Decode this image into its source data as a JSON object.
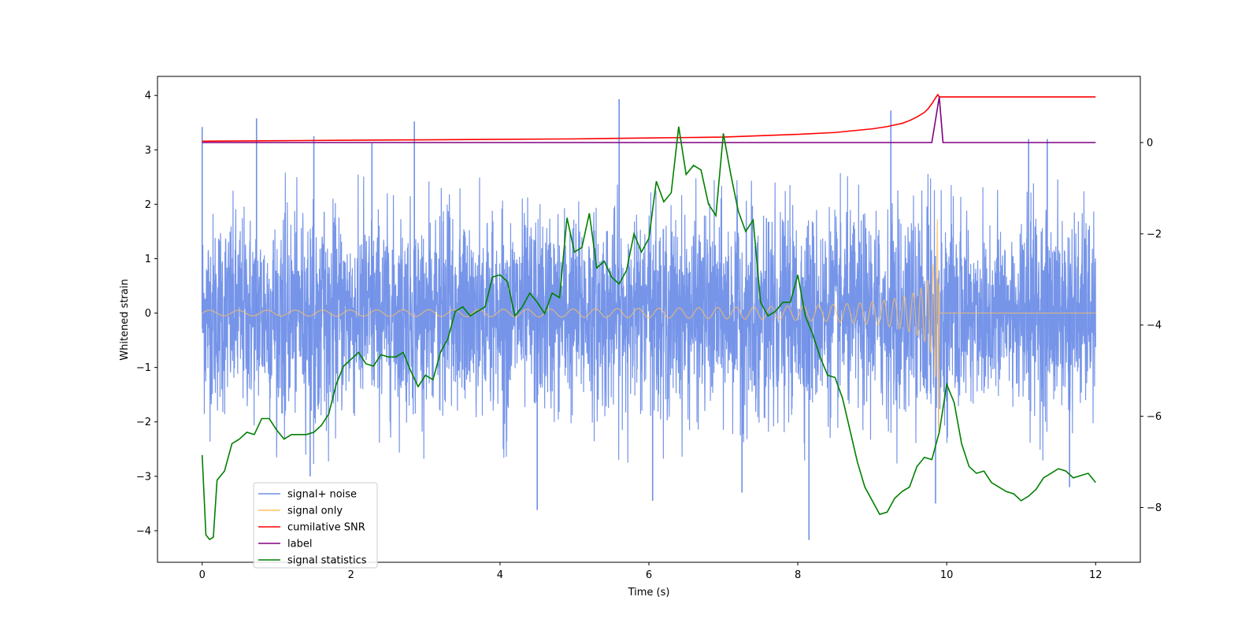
{
  "chart_data": {
    "type": "line",
    "title": "",
    "xlabel": "Time (s)",
    "ylabel": "Whitened strain",
    "y2label": "",
    "xlim": [
      -0.6,
      12.6
    ],
    "ylim": [
      -4.58,
      4.35
    ],
    "y2lim": [
      -9.2,
      1.45
    ],
    "xticks": [
      0,
      2,
      4,
      6,
      8,
      10,
      12
    ],
    "yticks": [
      -4,
      -3,
      -2,
      -1,
      0,
      1,
      2,
      3,
      4
    ],
    "y2ticks": [
      -8,
      -6,
      -4,
      -2,
      0
    ],
    "tick_labels": {
      "x": [
        "0",
        "2",
        "4",
        "6",
        "8",
        "10",
        "12"
      ],
      "y": [
        "−4",
        "−3",
        "−2",
        "−1",
        "0",
        "1",
        "2",
        "3",
        "4"
      ],
      "y2": [
        "−8",
        "−6",
        "−4",
        "−2",
        "0"
      ]
    },
    "grid": false,
    "legend_position": "lower-left",
    "noise": {
      "description": "Dense whitened noise, approximately +/-1.5 with occasional spikes",
      "spikes": [
        {
          "t": 0.0,
          "v": 3.42
        },
        {
          "t": 0.73,
          "v": 3.58
        },
        {
          "t": 1.5,
          "v": 3.25
        },
        {
          "t": 2.28,
          "v": 3.12
        },
        {
          "t": 2.85,
          "v": 3.52
        },
        {
          "t": 5.6,
          "v": 3.93
        },
        {
          "t": 9.25,
          "v": 3.72
        },
        {
          "t": 11.1,
          "v": 3.2
        },
        {
          "t": 11.35,
          "v": 3.2
        },
        {
          "t": 1.45,
          "v": -3.0
        },
        {
          "t": 4.5,
          "v": -3.62
        },
        {
          "t": 6.05,
          "v": -3.45
        },
        {
          "t": 7.25,
          "v": -3.3
        },
        {
          "t": 8.15,
          "v": -4.17
        },
        {
          "t": 9.85,
          "v": -3.5
        },
        {
          "t": 11.65,
          "v": -3.2
        }
      ]
    },
    "chirp": {
      "merger_time": 9.9,
      "peak_amplitude": 2.2,
      "description": "Signal only: inspiral chirp growing toward merger near t=9.9 s, zero afterwards"
    },
    "series": [
      {
        "name": "cumilative SNR",
        "axis": "right",
        "color": "#ff0000",
        "x": [
          0,
          1,
          2,
          3,
          4,
          5,
          6,
          6.5,
          7,
          7.5,
          8,
          8.5,
          9,
          9.2,
          9.4,
          9.5,
          9.6,
          9.7,
          9.75,
          9.8,
          9.85,
          9.88,
          9.9,
          9.93,
          10,
          11,
          12
        ],
        "values": [
          0.03,
          0.04,
          0.05,
          0.06,
          0.07,
          0.08,
          0.1,
          0.11,
          0.12,
          0.15,
          0.18,
          0.22,
          0.3,
          0.35,
          0.42,
          0.48,
          0.56,
          0.66,
          0.74,
          0.85,
          0.98,
          1.05,
          1.0,
          1.0,
          1.0,
          1.0,
          1.0
        ]
      },
      {
        "name": "label",
        "axis": "right",
        "color": "#800080",
        "x": [
          0,
          9.8,
          9.9,
          9.95,
          12
        ],
        "values": [
          0,
          0,
          1.0,
          0,
          0
        ]
      },
      {
        "name": "signal statistics",
        "axis": "right",
        "color": "#008000",
        "x": [
          0,
          0.05,
          0.1,
          0.15,
          0.2,
          0.3,
          0.4,
          0.5,
          0.6,
          0.7,
          0.8,
          0.9,
          1.0,
          1.1,
          1.2,
          1.3,
          1.4,
          1.5,
          1.6,
          1.7,
          1.8,
          1.9,
          2.0,
          2.1,
          2.2,
          2.3,
          2.4,
          2.5,
          2.6,
          2.7,
          2.8,
          2.9,
          3.0,
          3.1,
          3.2,
          3.3,
          3.4,
          3.5,
          3.6,
          3.7,
          3.8,
          3.9,
          4.0,
          4.1,
          4.2,
          4.3,
          4.4,
          4.5,
          4.6,
          4.7,
          4.8,
          4.9,
          5.0,
          5.1,
          5.2,
          5.3,
          5.4,
          5.5,
          5.6,
          5.7,
          5.8,
          5.9,
          6.0,
          6.1,
          6.2,
          6.3,
          6.4,
          6.5,
          6.6,
          6.7,
          6.8,
          6.9,
          7.0,
          7.1,
          7.2,
          7.3,
          7.4,
          7.5,
          7.6,
          7.7,
          7.8,
          7.9,
          8.0,
          8.1,
          8.2,
          8.3,
          8.4,
          8.5,
          8.6,
          8.7,
          8.8,
          8.9,
          9.0,
          9.1,
          9.2,
          9.3,
          9.4,
          9.5,
          9.6,
          9.7,
          9.8,
          9.9,
          10.0,
          10.1,
          10.2,
          10.3,
          10.4,
          10.5,
          10.6,
          10.7,
          10.8,
          10.9,
          11.0,
          11.1,
          11.2,
          11.3,
          11.4,
          11.5,
          11.6,
          11.7,
          11.8,
          11.9,
          12.0
        ],
        "values": [
          -6.85,
          -8.6,
          -8.7,
          -8.65,
          -7.4,
          -7.2,
          -6.6,
          -6.5,
          -6.35,
          -6.4,
          -6.05,
          -6.05,
          -6.3,
          -6.5,
          -6.4,
          -6.4,
          -6.4,
          -6.35,
          -6.2,
          -5.95,
          -5.3,
          -4.9,
          -4.75,
          -4.6,
          -4.85,
          -4.9,
          -4.65,
          -4.7,
          -4.7,
          -4.6,
          -5.0,
          -5.35,
          -5.1,
          -5.2,
          -4.6,
          -4.3,
          -3.7,
          -3.6,
          -3.8,
          -3.7,
          -3.6,
          -2.95,
          -2.9,
          -3.05,
          -3.8,
          -3.6,
          -3.3,
          -3.5,
          -3.75,
          -3.3,
          -3.4,
          -1.65,
          -2.4,
          -2.3,
          -1.55,
          -2.75,
          -2.6,
          -2.95,
          -3.1,
          -2.8,
          -2.0,
          -2.4,
          -2.1,
          -0.85,
          -1.3,
          -1.1,
          0.35,
          -0.7,
          -0.5,
          -0.6,
          -1.35,
          -1.6,
          0.2,
          -0.7,
          -1.5,
          -1.95,
          -1.7,
          -3.5,
          -3.8,
          -3.7,
          -3.5,
          -3.5,
          -2.9,
          -3.8,
          -4.2,
          -4.7,
          -5.1,
          -5.15,
          -5.6,
          -6.3,
          -7.0,
          -7.55,
          -7.85,
          -8.15,
          -8.1,
          -7.8,
          -7.65,
          -7.55,
          -7.1,
          -6.9,
          -6.95,
          -6.35,
          -5.3,
          -5.7,
          -6.6,
          -7.1,
          -7.25,
          -7.2,
          -7.45,
          -7.55,
          -7.65,
          -7.7,
          -7.85,
          -7.75,
          -7.6,
          -7.35,
          -7.25,
          -7.15,
          -7.2,
          -7.35,
          -7.3,
          -7.25,
          -7.45
        ]
      }
    ],
    "legend": [
      {
        "name": "signal+ noise",
        "color": "#6f8fe8"
      },
      {
        "name": "signal only",
        "color": "#ffbf60"
      },
      {
        "name": "cumilative SNR",
        "color": "#ff0000"
      },
      {
        "name": "label",
        "color": "#800080"
      },
      {
        "name": "signal statistics",
        "color": "#008000"
      }
    ]
  }
}
